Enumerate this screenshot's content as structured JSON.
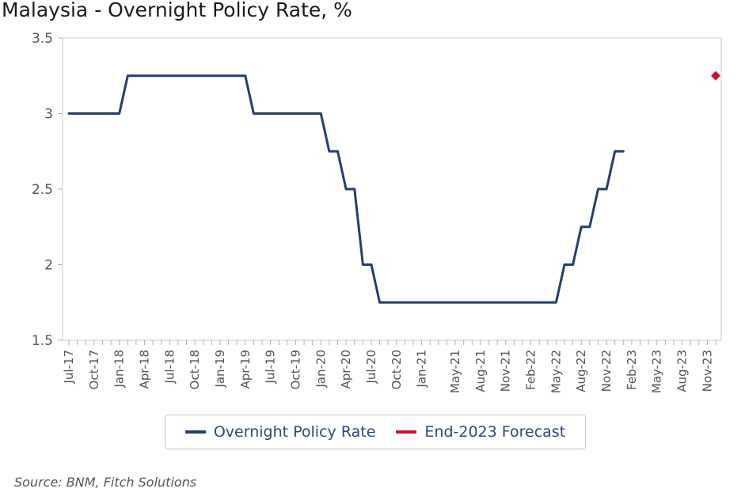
{
  "chart_data": {
    "type": "line",
    "title": "Malaysia - Overnight Policy Rate, %",
    "xlabel": "",
    "ylabel": "",
    "ylim": [
      1.5,
      3.5
    ],
    "yticks": [
      "1.5",
      "2",
      "2.5",
      "3",
      "3.5"
    ],
    "xticks": [
      "Jul-17",
      "Oct-17",
      "Jan-18",
      "Apr-18",
      "Jul-18",
      "Oct-18",
      "Jan-19",
      "Apr-19",
      "Jul-19",
      "Oct-19",
      "Jan-20",
      "Apr-20",
      "Jul-20",
      "Oct-20",
      "Jan-21",
      "May-21",
      "Aug-21",
      "Nov-21",
      "Feb-22",
      "May-22",
      "Aug-22",
      "Nov-22",
      "Feb-23",
      "May-23",
      "Aug-23",
      "Nov-23"
    ],
    "grid": false,
    "legend": "bottom",
    "series": [
      {
        "name": "Overnight Policy Rate",
        "color": "#243f6b",
        "x": [
          "Jul-17",
          "Jan-18",
          "Feb-18",
          "Apr-19",
          "May-19",
          "Jan-20",
          "Feb-20",
          "Mar-20",
          "Apr-20",
          "May-20",
          "Jun-20",
          "Jul-20",
          "Aug-20",
          "May-22",
          "Jun-22",
          "Jul-22",
          "Aug-22",
          "Sep-22",
          "Oct-22",
          "Nov-22",
          "Dec-22",
          "Jan-23"
        ],
        "values": [
          3.0,
          3.0,
          3.25,
          3.25,
          3.0,
          3.0,
          2.75,
          2.75,
          2.5,
          2.5,
          2.0,
          2.0,
          1.75,
          1.75,
          2.0,
          2.0,
          2.25,
          2.25,
          2.5,
          2.5,
          2.75,
          2.75
        ],
        "line_shape": "stepped"
      },
      {
        "name": "End-2023 Forecast",
        "color": "#c8102e",
        "x": [
          "Dec-23"
        ],
        "values": [
          3.25
        ],
        "marker": "diamond"
      }
    ]
  },
  "legend_items": [
    "Overnight Policy Rate",
    "End-2023 Forecast"
  ],
  "source": "Source: BNM, Fitch Solutions"
}
